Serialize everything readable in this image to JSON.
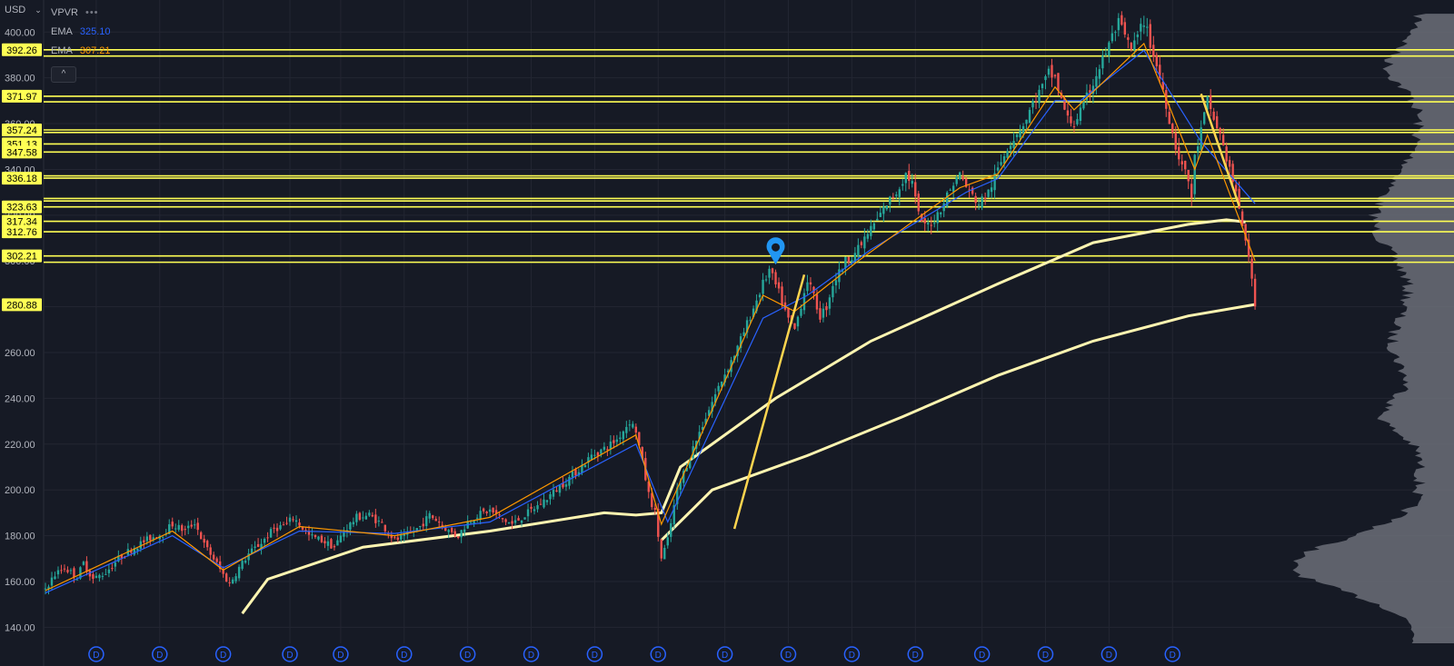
{
  "currency": {
    "label": "USD",
    "chevron": "chevron-down-icon"
  },
  "legend": {
    "indicator": "VPVR",
    "more_icon": "•••",
    "ema_label_1": "EMA",
    "ema_value_1": "325.10",
    "ema_color_1": "#2962ff",
    "ema_label_2": "EMA",
    "ema_value_2": "307.21",
    "ema_color_2": "#ff9800",
    "collapse_icon": "^"
  },
  "colors": {
    "background": "#161a25",
    "grid": "#232632",
    "axis_text": "#b2b5be",
    "level_line": "#ffff54",
    "level_label_bg": "#ffff54",
    "sma": "#fff5b1",
    "candle_up": "#26a69a",
    "candle_down": "#ef5350",
    "volume_profile": "#6b6e78",
    "marker": "#2196f3",
    "dividend_marker": "#2962ff"
  },
  "chart_data": {
    "type": "line",
    "ylim": [
      133,
      414
    ],
    "y_ticks": [
      140,
      160,
      180,
      200,
      220,
      240,
      260,
      280,
      300,
      320,
      340,
      360,
      380,
      400
    ],
    "y_tick_labels": [
      "140.00",
      "160.00",
      "180.00",
      "200.00",
      "220.00",
      "240.00",
      "260.00",
      "280.00",
      "300.00",
      "320.00",
      "340.00",
      "360.00",
      "380.00",
      "400.00"
    ],
    "price_levels": [
      392.26,
      389.51,
      371.97,
      369.51,
      357.24,
      356.14,
      351.13,
      347.58,
      337.18,
      336.18,
      327.31,
      326.22,
      323.63,
      317.34,
      312.76,
      302.21,
      299.45
    ],
    "level_labels": [
      {
        "price": 392.26,
        "text": "392.26"
      },
      {
        "price": 371.97,
        "text": "371.97"
      },
      {
        "price": 357.24,
        "text": "357.24"
      },
      {
        "price": 351.13,
        "text": "351.13"
      },
      {
        "price": 347.58,
        "text": "347.58"
      },
      {
        "price": 336.18,
        "text": "336.18"
      },
      {
        "price": 323.63,
        "text": "323.63"
      },
      {
        "price": 317.34,
        "text": "317.34"
      },
      {
        "price": 312.76,
        "text": "312.76"
      },
      {
        "price": 302.21,
        "text": "302.21"
      },
      {
        "price": 280.88,
        "text": "280.88"
      }
    ],
    "x_count": 140,
    "price_series": {
      "name": "",
      "points": [
        [
          0,
          157
        ],
        [
          3,
          163
        ],
        [
          6,
          166
        ],
        [
          10,
          162
        ],
        [
          12,
          168
        ],
        [
          15,
          161
        ],
        [
          19,
          164
        ],
        [
          23,
          170
        ],
        [
          28,
          175
        ],
        [
          33,
          179
        ],
        [
          37,
          181
        ],
        [
          40,
          185
        ],
        [
          44,
          182
        ],
        [
          47,
          186
        ],
        [
          50,
          176
        ],
        [
          53,
          170
        ],
        [
          56,
          163
        ],
        [
          58,
          159
        ],
        [
          61,
          166
        ],
        [
          64,
          172
        ],
        [
          68,
          177
        ],
        [
          72,
          183
        ],
        [
          76,
          185
        ],
        [
          78,
          188
        ],
        [
          80,
          185
        ],
        [
          83,
          180
        ],
        [
          87,
          178
        ],
        [
          91,
          175
        ],
        [
          94,
          182
        ],
        [
          98,
          188
        ],
        [
          102,
          189
        ],
        [
          106,
          185
        ],
        [
          110,
          178
        ],
        [
          114,
          180
        ],
        [
          118,
          184
        ],
        [
          121,
          189
        ],
        [
          124,
          186
        ],
        [
          127,
          182
        ],
        [
          130,
          180
        ],
        [
          133,
          186
        ],
        [
          136,
          189
        ],
        [
          140,
          191
        ],
        [
          144,
          187
        ],
        [
          147,
          185
        ],
        [
          151,
          189
        ],
        [
          156,
          194
        ],
        [
          160,
          199
        ],
        [
          164,
          204
        ],
        [
          168,
          209
        ],
        [
          172,
          215
        ],
        [
          176,
          218
        ],
        [
          180,
          222
        ],
        [
          184,
          230
        ],
        [
          186,
          226
        ],
        [
          188,
          212
        ],
        [
          190,
          198
        ],
        [
          192,
          190
        ],
        [
          194,
          170
        ],
        [
          196,
          178
        ],
        [
          199,
          200
        ],
        [
          203,
          215
        ],
        [
          208,
          232
        ],
        [
          213,
          248
        ],
        [
          218,
          262
        ],
        [
          222,
          276
        ],
        [
          226,
          290
        ],
        [
          228,
          296
        ],
        [
          231,
          286
        ],
        [
          234,
          274
        ],
        [
          236,
          270
        ],
        [
          238,
          281
        ],
        [
          240,
          292
        ],
        [
          242,
          284
        ],
        [
          244,
          276
        ],
        [
          246,
          280
        ],
        [
          248,
          290
        ],
        [
          252,
          300
        ],
        [
          256,
          305
        ],
        [
          259,
          312
        ],
        [
          262,
          318
        ],
        [
          265,
          325
        ],
        [
          268,
          330
        ],
        [
          271,
          338
        ],
        [
          273,
          334
        ],
        [
          275,
          320
        ],
        [
          277,
          315
        ],
        [
          280,
          318
        ],
        [
          283,
          326
        ],
        [
          286,
          334
        ],
        [
          288,
          338
        ],
        [
          291,
          330
        ],
        [
          294,
          325
        ],
        [
          297,
          330
        ],
        [
          300,
          340
        ],
        [
          303,
          350
        ],
        [
          306,
          356
        ],
        [
          309,
          362
        ],
        [
          311,
          369
        ],
        [
          314,
          376
        ],
        [
          316,
          382
        ],
        [
          318,
          380
        ],
        [
          320,
          370
        ],
        [
          322,
          362
        ],
        [
          324,
          360
        ],
        [
          327,
          368
        ],
        [
          330,
          378
        ],
        [
          333,
          388
        ],
        [
          336,
          398
        ],
        [
          338,
          404
        ],
        [
          340,
          398
        ],
        [
          342,
          392
        ],
        [
          344,
          398
        ],
        [
          346,
          405
        ],
        [
          348,
          395
        ],
        [
          350,
          385
        ],
        [
          352,
          375
        ],
        [
          354,
          362
        ],
        [
          356,
          350
        ],
        [
          358,
          342
        ],
        [
          360,
          335
        ],
        [
          361,
          328
        ],
        [
          362,
          345
        ],
        [
          364,
          357
        ],
        [
          366,
          370
        ],
        [
          368,
          362
        ],
        [
          370,
          355
        ],
        [
          372,
          345
        ],
        [
          374,
          335
        ],
        [
          376,
          322
        ],
        [
          378,
          310
        ],
        [
          379,
          300
        ],
        [
          380,
          292
        ],
        [
          381,
          282
        ]
      ]
    },
    "ema_short_points": [
      [
        0,
        156
      ],
      [
        40,
        182
      ],
      [
        56,
        165
      ],
      [
        80,
        184
      ],
      [
        110,
        180
      ],
      [
        140,
        188
      ],
      [
        186,
        224
      ],
      [
        194,
        185
      ],
      [
        226,
        285
      ],
      [
        236,
        278
      ],
      [
        256,
        300
      ],
      [
        288,
        332
      ],
      [
        300,
        338
      ],
      [
        318,
        376
      ],
      [
        324,
        366
      ],
      [
        346,
        395
      ],
      [
        362,
        340
      ],
      [
        366,
        355
      ],
      [
        381,
        300
      ]
    ],
    "ema_long_points": [
      [
        0,
        155
      ],
      [
        40,
        180
      ],
      [
        56,
        166
      ],
      [
        80,
        182
      ],
      [
        110,
        181
      ],
      [
        140,
        186
      ],
      [
        186,
        220
      ],
      [
        196,
        186
      ],
      [
        226,
        275
      ],
      [
        240,
        285
      ],
      [
        260,
        305
      ],
      [
        290,
        330
      ],
      [
        300,
        336
      ],
      [
        318,
        370
      ],
      [
        326,
        370
      ],
      [
        346,
        392
      ],
      [
        364,
        352
      ],
      [
        381,
        325
      ]
    ],
    "sma_200_points": [
      [
        62,
        146
      ],
      [
        70,
        161
      ],
      [
        100,
        175
      ],
      [
        140,
        182
      ],
      [
        176,
        190
      ],
      [
        186,
        189
      ],
      [
        194,
        190
      ],
      [
        200,
        210
      ],
      [
        230,
        240
      ],
      [
        260,
        265
      ],
      [
        300,
        290
      ],
      [
        330,
        308
      ],
      [
        360,
        316
      ],
      [
        372,
        318
      ],
      [
        378,
        317
      ]
    ],
    "sma_400_points": [
      [
        194,
        178
      ],
      [
        210,
        200
      ],
      [
        240,
        215
      ],
      [
        270,
        232
      ],
      [
        300,
        250
      ],
      [
        330,
        265
      ],
      [
        360,
        276
      ],
      [
        381,
        281
      ]
    ],
    "trend_lines": [
      [
        [
          217,
          183
        ],
        [
          239,
          294
        ]
      ],
      [
        [
          364,
          373
        ],
        [
          376,
          324
        ]
      ]
    ],
    "dividend_marker_label": "D",
    "dividend_markers_x": [
      16,
      36,
      56,
      77,
      93,
      113,
      133,
      153,
      173,
      193,
      214,
      234,
      254,
      274,
      295,
      315,
      335,
      355
    ],
    "flag_marker": {
      "x": 230,
      "price": 300
    }
  }
}
